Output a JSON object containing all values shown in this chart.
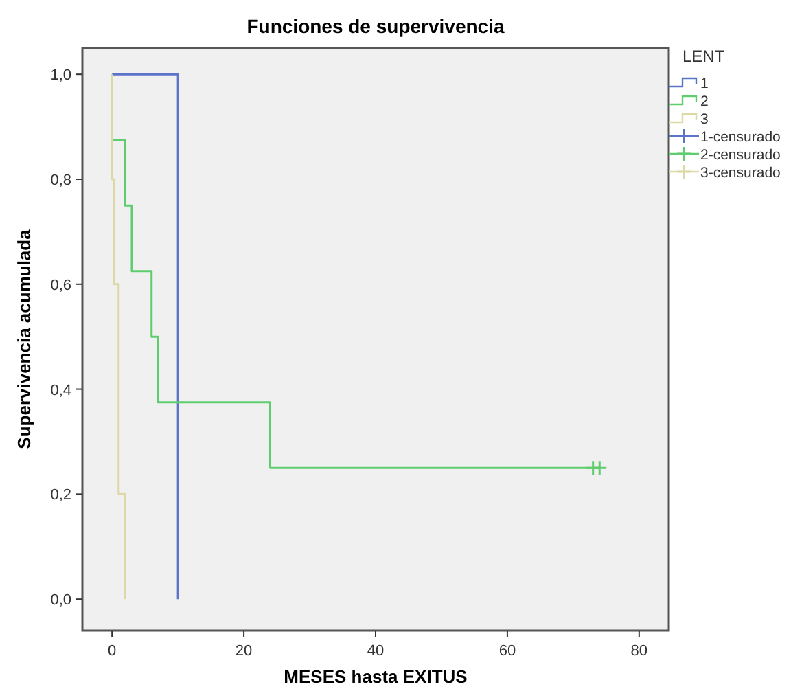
{
  "chart_data": {
    "type": "step",
    "title": "Funciones de supervivencia",
    "xlabel": "MESES hasta EXITUS",
    "ylabel": "Supervivencia acumulada",
    "legend_title": "LENT",
    "legend": "top right",
    "grid": false,
    "xlim": [
      -4.5,
      84.5
    ],
    "xticks": [
      0,
      20,
      40,
      60,
      80
    ],
    "ylim": [
      -0.06,
      1.05
    ],
    "yticks": [
      {
        "value": 0,
        "label": "0,0"
      },
      {
        "value": 0.2,
        "label": "0,2"
      },
      {
        "value": 0.4,
        "label": "0,4"
      },
      {
        "value": 0.6,
        "label": "0,6"
      },
      {
        "value": 0.8,
        "label": "0,8"
      },
      {
        "value": 1,
        "label": "1,0"
      }
    ],
    "series": [
      {
        "name": "1",
        "color": "#5b73c9",
        "x": [
          0,
          10
        ],
        "values": [
          1,
          0
        ]
      },
      {
        "name": "2",
        "color": "#5fcd6e",
        "x": [
          0,
          0,
          2,
          3,
          6,
          7,
          24,
          74
        ],
        "values": [
          1,
          0.875,
          0.75,
          0.625,
          0.5,
          0.375,
          0.25,
          0.25
        ]
      },
      {
        "name": "3",
        "color": "#dcd9a6",
        "x": [
          0,
          0,
          0.3,
          1,
          2
        ],
        "values": [
          1,
          0.8,
          0.6,
          0.2,
          0
        ]
      },
      {
        "name": "1-censurado",
        "type": "scatter",
        "marker": "cross",
        "color": "#5b73c9"
      },
      {
        "name": "2-censurado",
        "type": "scatter",
        "marker": "cross",
        "color": "#5fcd6e",
        "x": [
          73,
          74
        ],
        "values": [
          0.25,
          0.25
        ]
      },
      {
        "name": "3-censurado",
        "type": "scatter",
        "marker": "cross",
        "color": "#dcd9a6"
      }
    ]
  }
}
